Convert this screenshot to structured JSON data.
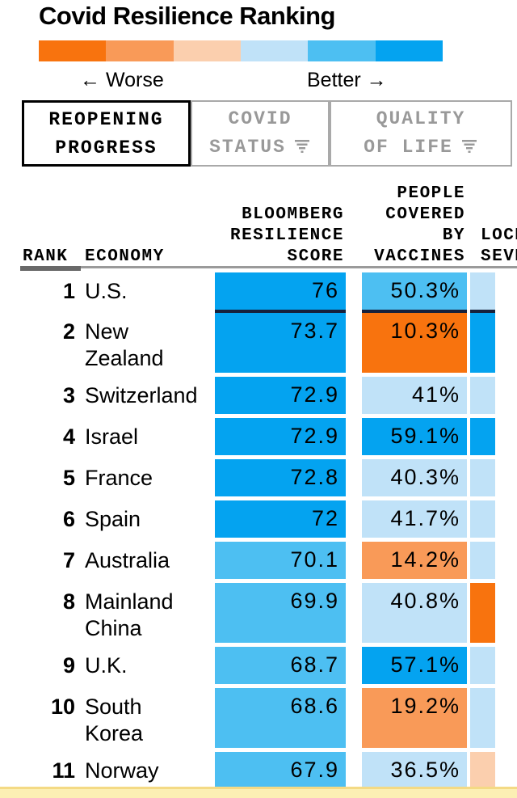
{
  "title": "Covid Resilience Ranking",
  "legend": {
    "worse_label": "← Worse",
    "better_label": "Better →",
    "colors": [
      "#f8730e",
      "#f99a58",
      "#fbcfae",
      "#c0e2f8",
      "#4dbff2",
      "#04a3f0"
    ]
  },
  "tabs": [
    {
      "lines": [
        "REOPENING",
        "PROGRESS"
      ],
      "active": true,
      "has_filter": false
    },
    {
      "lines": [
        "COVID",
        "STATUS"
      ],
      "active": false,
      "has_filter": true
    },
    {
      "lines": [
        "QUALITY",
        "OF LIFE"
      ],
      "active": false,
      "has_filter": true
    }
  ],
  "table_headers": {
    "rank": "RANK",
    "economy": "ECONOMY",
    "score_lines": [
      "BLOOMBERG",
      "RESILIENCE",
      "SCORE"
    ],
    "vaccines_lines": [
      "PEOPLE",
      "COVERED",
      "BY",
      "VACCINES"
    ],
    "lockdown_lines": [
      "LOCKDOWN",
      "SEVERITY"
    ]
  },
  "palette": {
    "dark-orange": "#f8730e",
    "med-orange": "#f99a58",
    "light-peach": "#fbcfae",
    "light-blue": "#c0e2f8",
    "med-blue": "#4dbff2",
    "dark-blue": "#04a3f0"
  },
  "chart_data": {
    "type": "table",
    "title": "Covid Resilience Ranking",
    "columns": [
      "Rank",
      "Economy",
      "Bloomberg Resilience Score",
      "People Covered by Vaccines",
      "Lockdown Severity"
    ],
    "color_scale_note": "orange = worse, blue = better",
    "rows": [
      {
        "rank": "1",
        "economy": [
          "U.S."
        ],
        "score": "76",
        "score_tone": "dark-blue",
        "vaccines": "50.3%",
        "vaccines_tone": "med-blue",
        "lockdown_tone": "light-blue",
        "divider_below": true
      },
      {
        "rank": "2",
        "economy": [
          "New",
          "Zealand"
        ],
        "score": "73.7",
        "score_tone": "dark-blue",
        "vaccines": "10.3%",
        "vaccines_tone": "dark-orange",
        "lockdown_tone": "dark-blue"
      },
      {
        "rank": "3",
        "economy": [
          "Switzerland"
        ],
        "score": "72.9",
        "score_tone": "dark-blue",
        "vaccines": "41%",
        "vaccines_tone": "light-blue",
        "lockdown_tone": "light-blue"
      },
      {
        "rank": "4",
        "economy": [
          "Israel"
        ],
        "score": "72.9",
        "score_tone": "dark-blue",
        "vaccines": "59.1%",
        "vaccines_tone": "dark-blue",
        "lockdown_tone": "dark-blue"
      },
      {
        "rank": "5",
        "economy": [
          "France"
        ],
        "score": "72.8",
        "score_tone": "dark-blue",
        "vaccines": "40.3%",
        "vaccines_tone": "light-blue",
        "lockdown_tone": "light-blue"
      },
      {
        "rank": "6",
        "economy": [
          "Spain"
        ],
        "score": "72",
        "score_tone": "dark-blue",
        "vaccines": "41.7%",
        "vaccines_tone": "light-blue",
        "lockdown_tone": "light-blue"
      },
      {
        "rank": "7",
        "economy": [
          "Australia"
        ],
        "score": "70.1",
        "score_tone": "med-blue",
        "vaccines": "14.2%",
        "vaccines_tone": "med-orange",
        "lockdown_tone": "light-blue"
      },
      {
        "rank": "8",
        "economy": [
          "Mainland",
          "China"
        ],
        "score": "69.9",
        "score_tone": "med-blue",
        "vaccines": "40.8%",
        "vaccines_tone": "light-blue",
        "lockdown_tone": "dark-orange"
      },
      {
        "rank": "9",
        "economy": [
          "U.K."
        ],
        "score": "68.7",
        "score_tone": "med-blue",
        "vaccines": "57.1%",
        "vaccines_tone": "dark-blue",
        "lockdown_tone": "light-blue"
      },
      {
        "rank": "10",
        "economy": [
          "South",
          "Korea"
        ],
        "score": "68.6",
        "score_tone": "med-blue",
        "vaccines": "19.2%",
        "vaccines_tone": "med-orange",
        "lockdown_tone": "light-blue"
      },
      {
        "rank": "11",
        "economy": [
          "Norway"
        ],
        "score": "67.9",
        "score_tone": "med-blue",
        "vaccines": "36.5%",
        "vaccines_tone": "light-blue",
        "lockdown_tone": "light-peach"
      }
    ]
  }
}
